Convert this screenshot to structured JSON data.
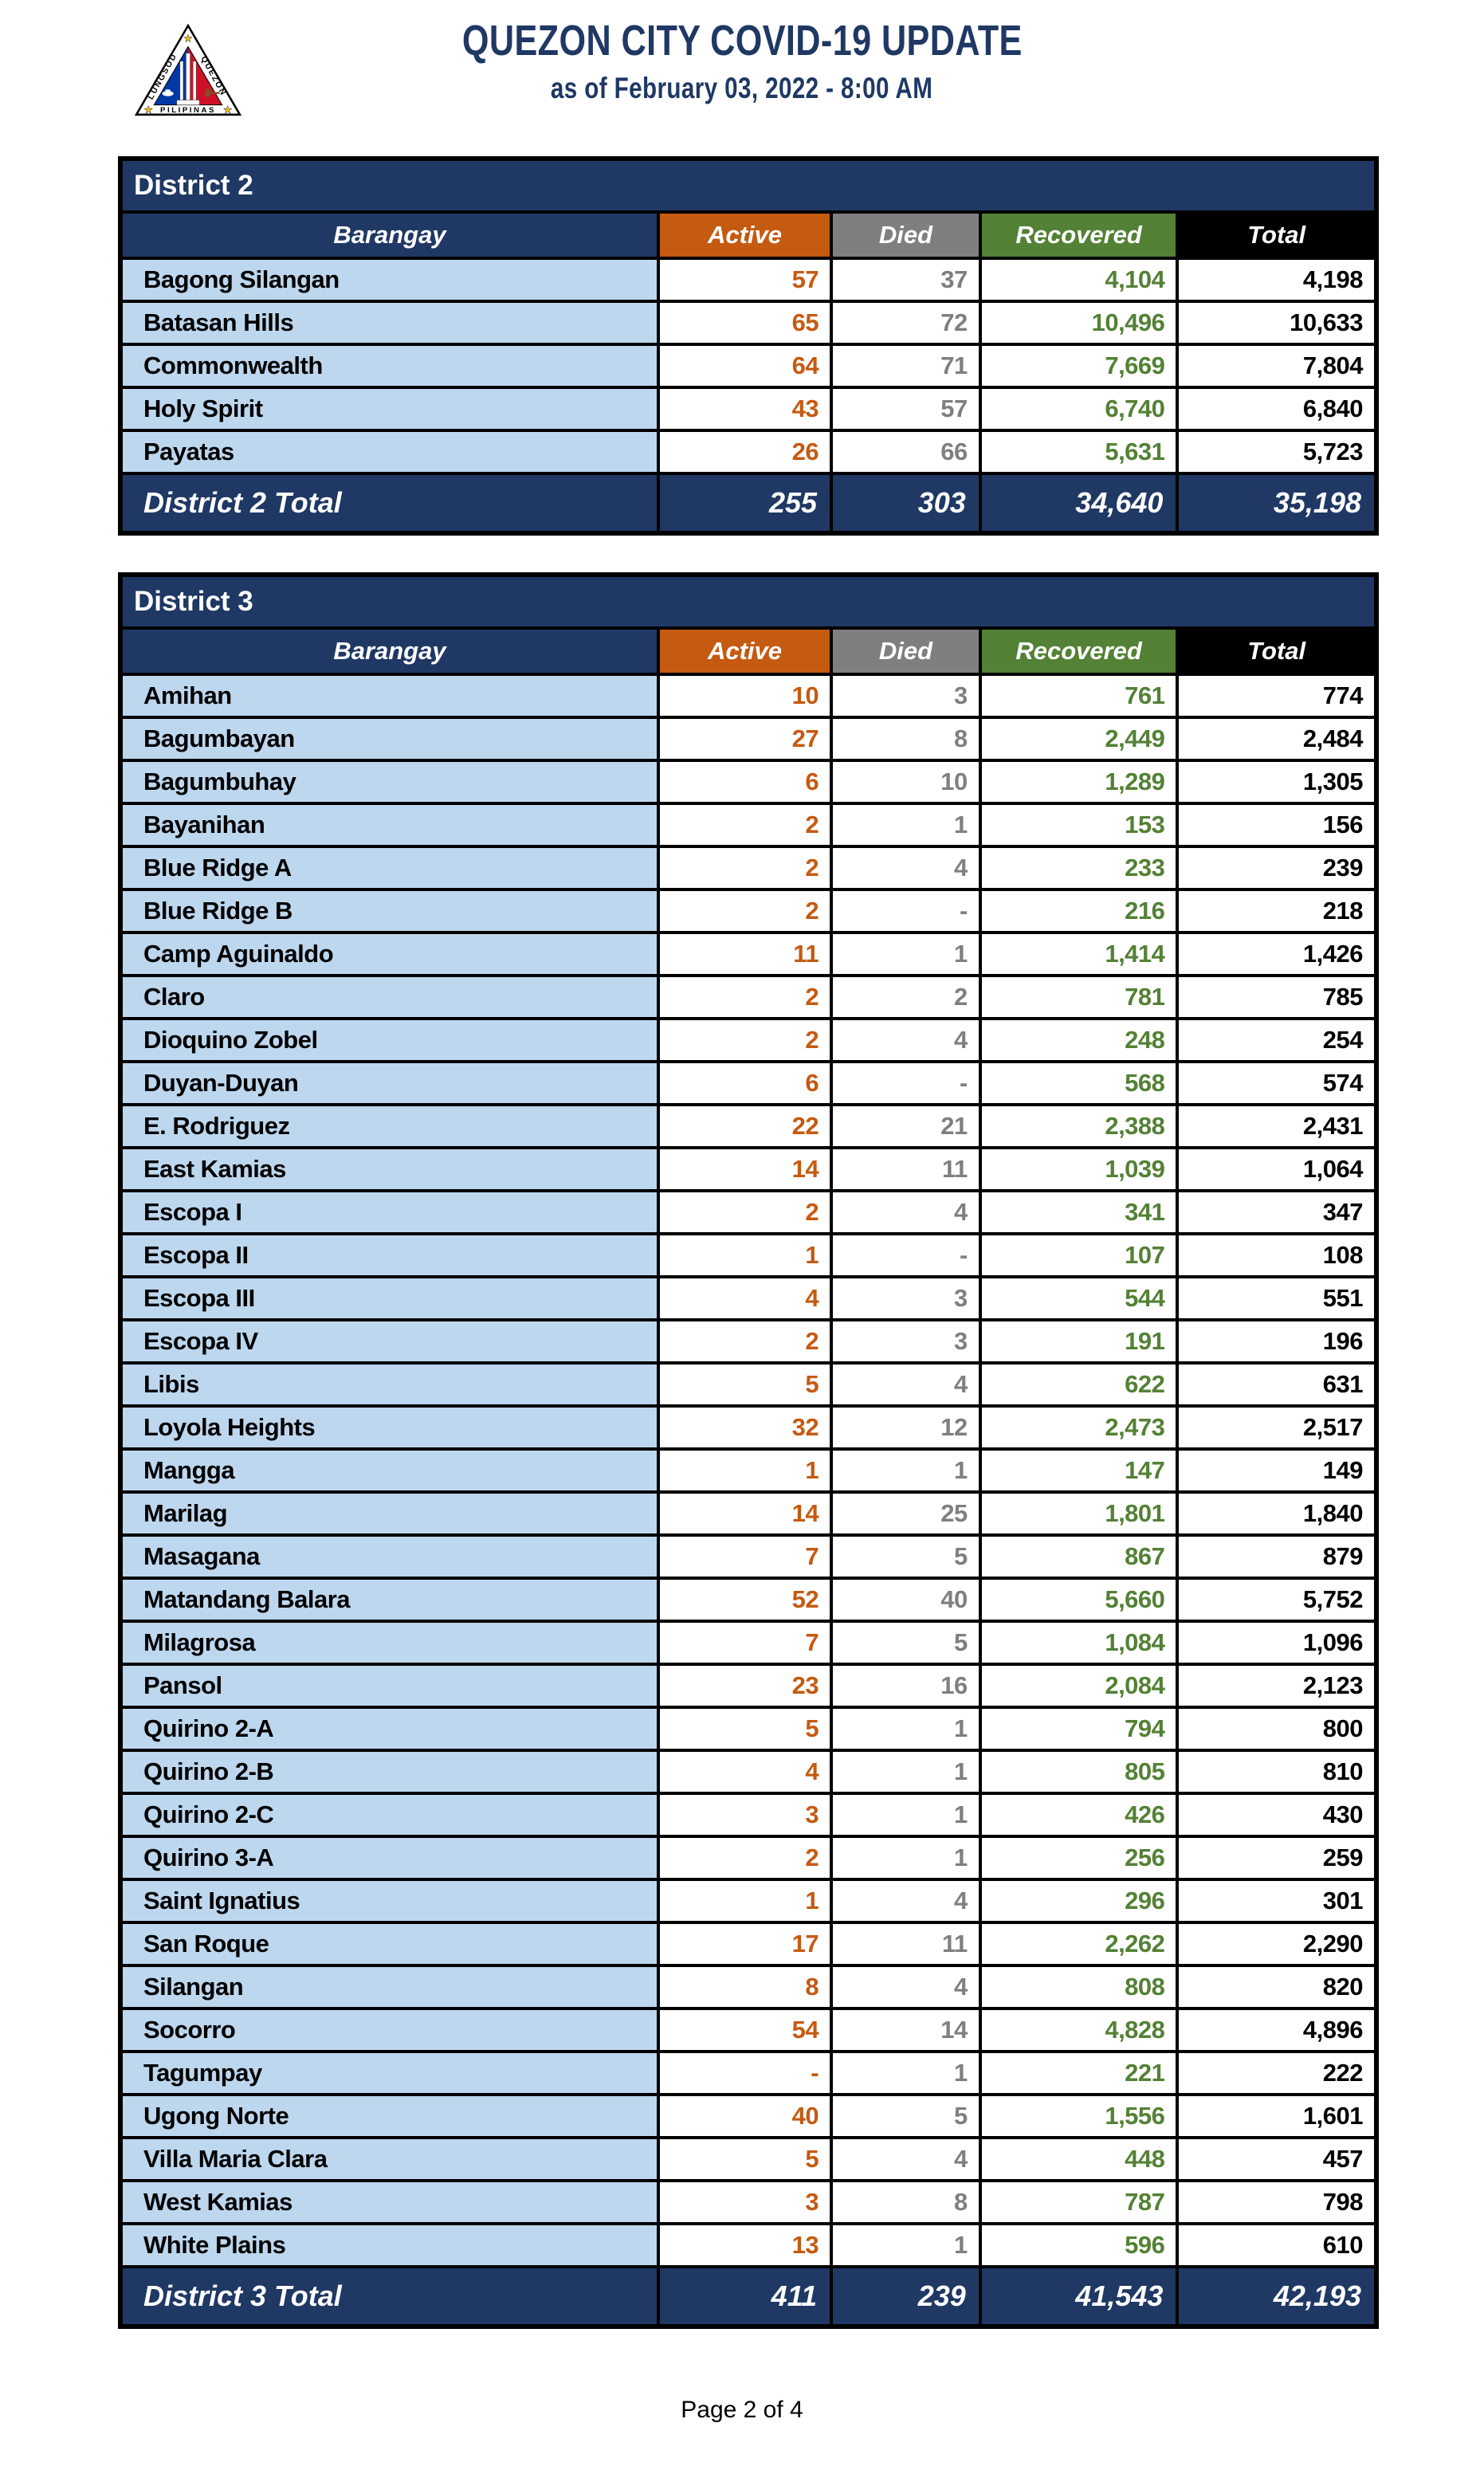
{
  "header": {
    "title": "QUEZON CITY COVID-19 UPDATE",
    "subtitle": "as of February 03, 2022 - 8:00 AM"
  },
  "logo": {
    "left_text": "LUNGSOD",
    "right_text": "QUEZON",
    "bottom_text": "PILIPINAS",
    "star": "★",
    "colors": {
      "blue": "#0038A8",
      "red": "#CE1126",
      "star": "#F5C518",
      "navy": "#1F3864"
    }
  },
  "columns": [
    "Barangay",
    "Active",
    "Died",
    "Recovered",
    "Total"
  ],
  "colors": {
    "navy": "#1F3864",
    "orange": "#C55A11",
    "gray": "#7F7F7F",
    "green": "#538135",
    "black": "#000000",
    "row_blue": "#BDD7EE"
  },
  "districts": [
    {
      "name": "District 2",
      "rows": [
        {
          "name": "Bagong Silangan",
          "active": "57",
          "died": "37",
          "recovered": "4,104",
          "total": "4,198"
        },
        {
          "name": "Batasan Hills",
          "active": "65",
          "died": "72",
          "recovered": "10,496",
          "total": "10,633"
        },
        {
          "name": "Commonwealth",
          "active": "64",
          "died": "71",
          "recovered": "7,669",
          "total": "7,804"
        },
        {
          "name": "Holy Spirit",
          "active": "43",
          "died": "57",
          "recovered": "6,740",
          "total": "6,840"
        },
        {
          "name": "Payatas",
          "active": "26",
          "died": "66",
          "recovered": "5,631",
          "total": "5,723"
        }
      ],
      "total": {
        "label": "District 2 Total",
        "active": "255",
        "died": "303",
        "recovered": "34,640",
        "total": "35,198"
      }
    },
    {
      "name": "District 3",
      "rows": [
        {
          "name": "Amihan",
          "active": "10",
          "died": "3",
          "recovered": "761",
          "total": "774"
        },
        {
          "name": "Bagumbayan",
          "active": "27",
          "died": "8",
          "recovered": "2,449",
          "total": "2,484"
        },
        {
          "name": "Bagumbuhay",
          "active": "6",
          "died": "10",
          "recovered": "1,289",
          "total": "1,305"
        },
        {
          "name": "Bayanihan",
          "active": "2",
          "died": "1",
          "recovered": "153",
          "total": "156"
        },
        {
          "name": "Blue Ridge A",
          "active": "2",
          "died": "4",
          "recovered": "233",
          "total": "239"
        },
        {
          "name": "Blue Ridge B",
          "active": "2",
          "died": "-",
          "recovered": "216",
          "total": "218"
        },
        {
          "name": "Camp Aguinaldo",
          "active": "11",
          "died": "1",
          "recovered": "1,414",
          "total": "1,426"
        },
        {
          "name": "Claro",
          "active": "2",
          "died": "2",
          "recovered": "781",
          "total": "785"
        },
        {
          "name": "Dioquino Zobel",
          "active": "2",
          "died": "4",
          "recovered": "248",
          "total": "254"
        },
        {
          "name": "Duyan-Duyan",
          "active": "6",
          "died": "-",
          "recovered": "568",
          "total": "574"
        },
        {
          "name": "E. Rodriguez",
          "active": "22",
          "died": "21",
          "recovered": "2,388",
          "total": "2,431"
        },
        {
          "name": "East Kamias",
          "active": "14",
          "died": "11",
          "recovered": "1,039",
          "total": "1,064"
        },
        {
          "name": "Escopa I",
          "active": "2",
          "died": "4",
          "recovered": "341",
          "total": "347"
        },
        {
          "name": "Escopa II",
          "active": "1",
          "died": "-",
          "recovered": "107",
          "total": "108"
        },
        {
          "name": "Escopa III",
          "active": "4",
          "died": "3",
          "recovered": "544",
          "total": "551"
        },
        {
          "name": "Escopa IV",
          "active": "2",
          "died": "3",
          "recovered": "191",
          "total": "196"
        },
        {
          "name": "Libis",
          "active": "5",
          "died": "4",
          "recovered": "622",
          "total": "631"
        },
        {
          "name": "Loyola Heights",
          "active": "32",
          "died": "12",
          "recovered": "2,473",
          "total": "2,517"
        },
        {
          "name": "Mangga",
          "active": "1",
          "died": "1",
          "recovered": "147",
          "total": "149"
        },
        {
          "name": "Marilag",
          "active": "14",
          "died": "25",
          "recovered": "1,801",
          "total": "1,840"
        },
        {
          "name": "Masagana",
          "active": "7",
          "died": "5",
          "recovered": "867",
          "total": "879"
        },
        {
          "name": "Matandang Balara",
          "active": "52",
          "died": "40",
          "recovered": "5,660",
          "total": "5,752"
        },
        {
          "name": "Milagrosa",
          "active": "7",
          "died": "5",
          "recovered": "1,084",
          "total": "1,096"
        },
        {
          "name": "Pansol",
          "active": "23",
          "died": "16",
          "recovered": "2,084",
          "total": "2,123"
        },
        {
          "name": "Quirino 2-A",
          "active": "5",
          "died": "1",
          "recovered": "794",
          "total": "800"
        },
        {
          "name": "Quirino 2-B",
          "active": "4",
          "died": "1",
          "recovered": "805",
          "total": "810"
        },
        {
          "name": "Quirino 2-C",
          "active": "3",
          "died": "1",
          "recovered": "426",
          "total": "430"
        },
        {
          "name": "Quirino 3-A",
          "active": "2",
          "died": "1",
          "recovered": "256",
          "total": "259"
        },
        {
          "name": "Saint Ignatius",
          "active": "1",
          "died": "4",
          "recovered": "296",
          "total": "301"
        },
        {
          "name": "San Roque",
          "active": "17",
          "died": "11",
          "recovered": "2,262",
          "total": "2,290"
        },
        {
          "name": "Silangan",
          "active": "8",
          "died": "4",
          "recovered": "808",
          "total": "820"
        },
        {
          "name": "Socorro",
          "active": "54",
          "died": "14",
          "recovered": "4,828",
          "total": "4,896"
        },
        {
          "name": "Tagumpay",
          "active": "-",
          "died": "1",
          "recovered": "221",
          "total": "222"
        },
        {
          "name": "Ugong Norte",
          "active": "40",
          "died": "5",
          "recovered": "1,556",
          "total": "1,601"
        },
        {
          "name": "Villa Maria Clara",
          "active": "5",
          "died": "4",
          "recovered": "448",
          "total": "457"
        },
        {
          "name": "West Kamias",
          "active": "3",
          "died": "8",
          "recovered": "787",
          "total": "798"
        },
        {
          "name": "White Plains",
          "active": "13",
          "died": "1",
          "recovered": "596",
          "total": "610"
        }
      ],
      "total": {
        "label": "District 3 Total",
        "active": "411",
        "died": "239",
        "recovered": "41,543",
        "total": "42,193"
      }
    }
  ],
  "footer": {
    "page_label": "Page 2 of 4"
  }
}
